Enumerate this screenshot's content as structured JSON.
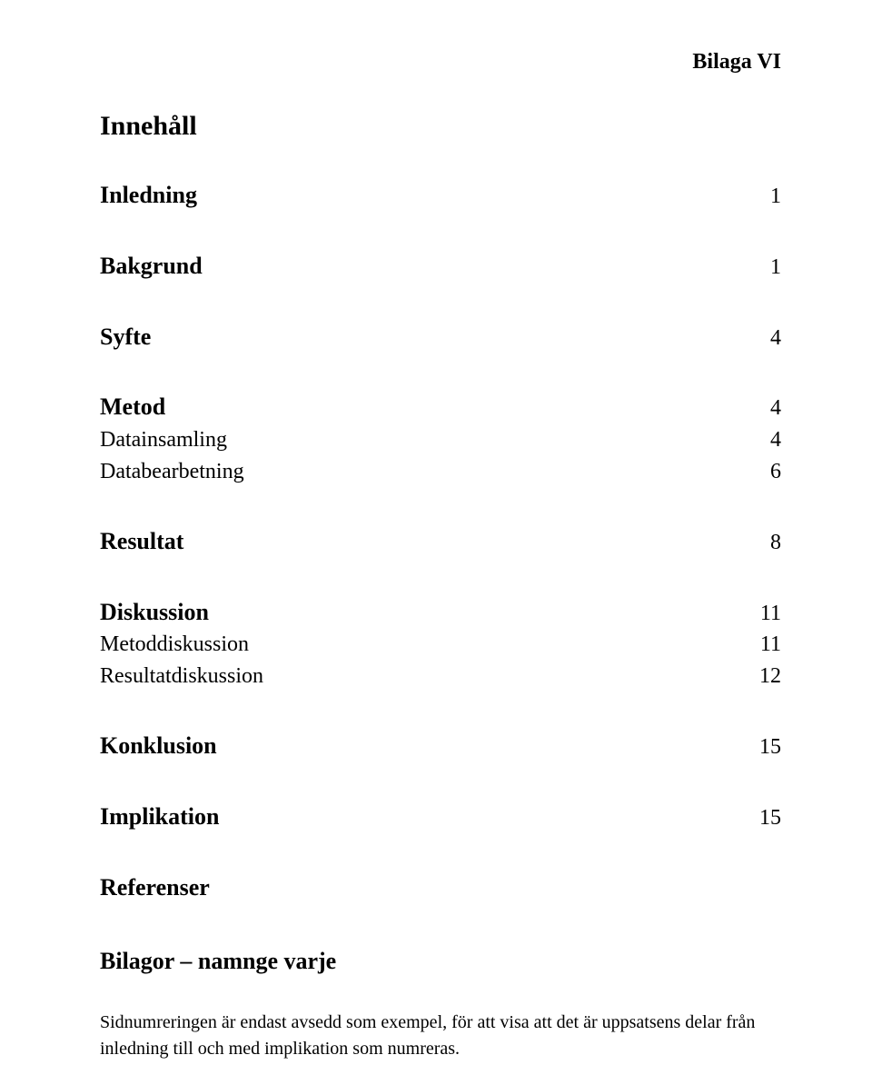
{
  "header": {
    "right_label": "Bilaga VI"
  },
  "toc": {
    "title": "Innehåll",
    "sections": [
      {
        "rows": [
          {
            "label": "Inledning",
            "bold": true,
            "page": "1"
          }
        ]
      },
      {
        "rows": [
          {
            "label": "Bakgrund",
            "bold": true,
            "page": "1"
          }
        ]
      },
      {
        "rows": [
          {
            "label": "Syfte",
            "bold": true,
            "page": "4"
          }
        ]
      },
      {
        "rows": [
          {
            "label": "Metod",
            "bold": true,
            "page": "4"
          },
          {
            "label": "Datainsamling",
            "bold": false,
            "page": "4"
          },
          {
            "label": "Databearbetning",
            "bold": false,
            "page": "6"
          }
        ]
      },
      {
        "rows": [
          {
            "label": "Resultat",
            "bold": true,
            "page": "8"
          }
        ]
      },
      {
        "rows": [
          {
            "label": "Diskussion",
            "bold": true,
            "page": "11"
          },
          {
            "label": "Metoddiskussion",
            "bold": false,
            "page": "11"
          },
          {
            "label": "Resultatdiskussion",
            "bold": false,
            "page": "12"
          }
        ]
      },
      {
        "rows": [
          {
            "label": "Konklusion",
            "bold": true,
            "page": "15"
          }
        ]
      },
      {
        "rows": [
          {
            "label": "Implikation",
            "bold": true,
            "page": "15"
          }
        ]
      },
      {
        "rows": [
          {
            "label": "Referenser",
            "bold": true,
            "page": ""
          }
        ]
      }
    ],
    "appendix_title": "Bilagor – namnge varje",
    "footnote": "Sidnumreringen är endast avsedd som exempel, för att visa att det är uppsatsens delar från inledning till och med implikation som numreras."
  },
  "style": {
    "background_color": "#ffffff",
    "text_color": "#000000",
    "font_family": "Times New Roman"
  }
}
